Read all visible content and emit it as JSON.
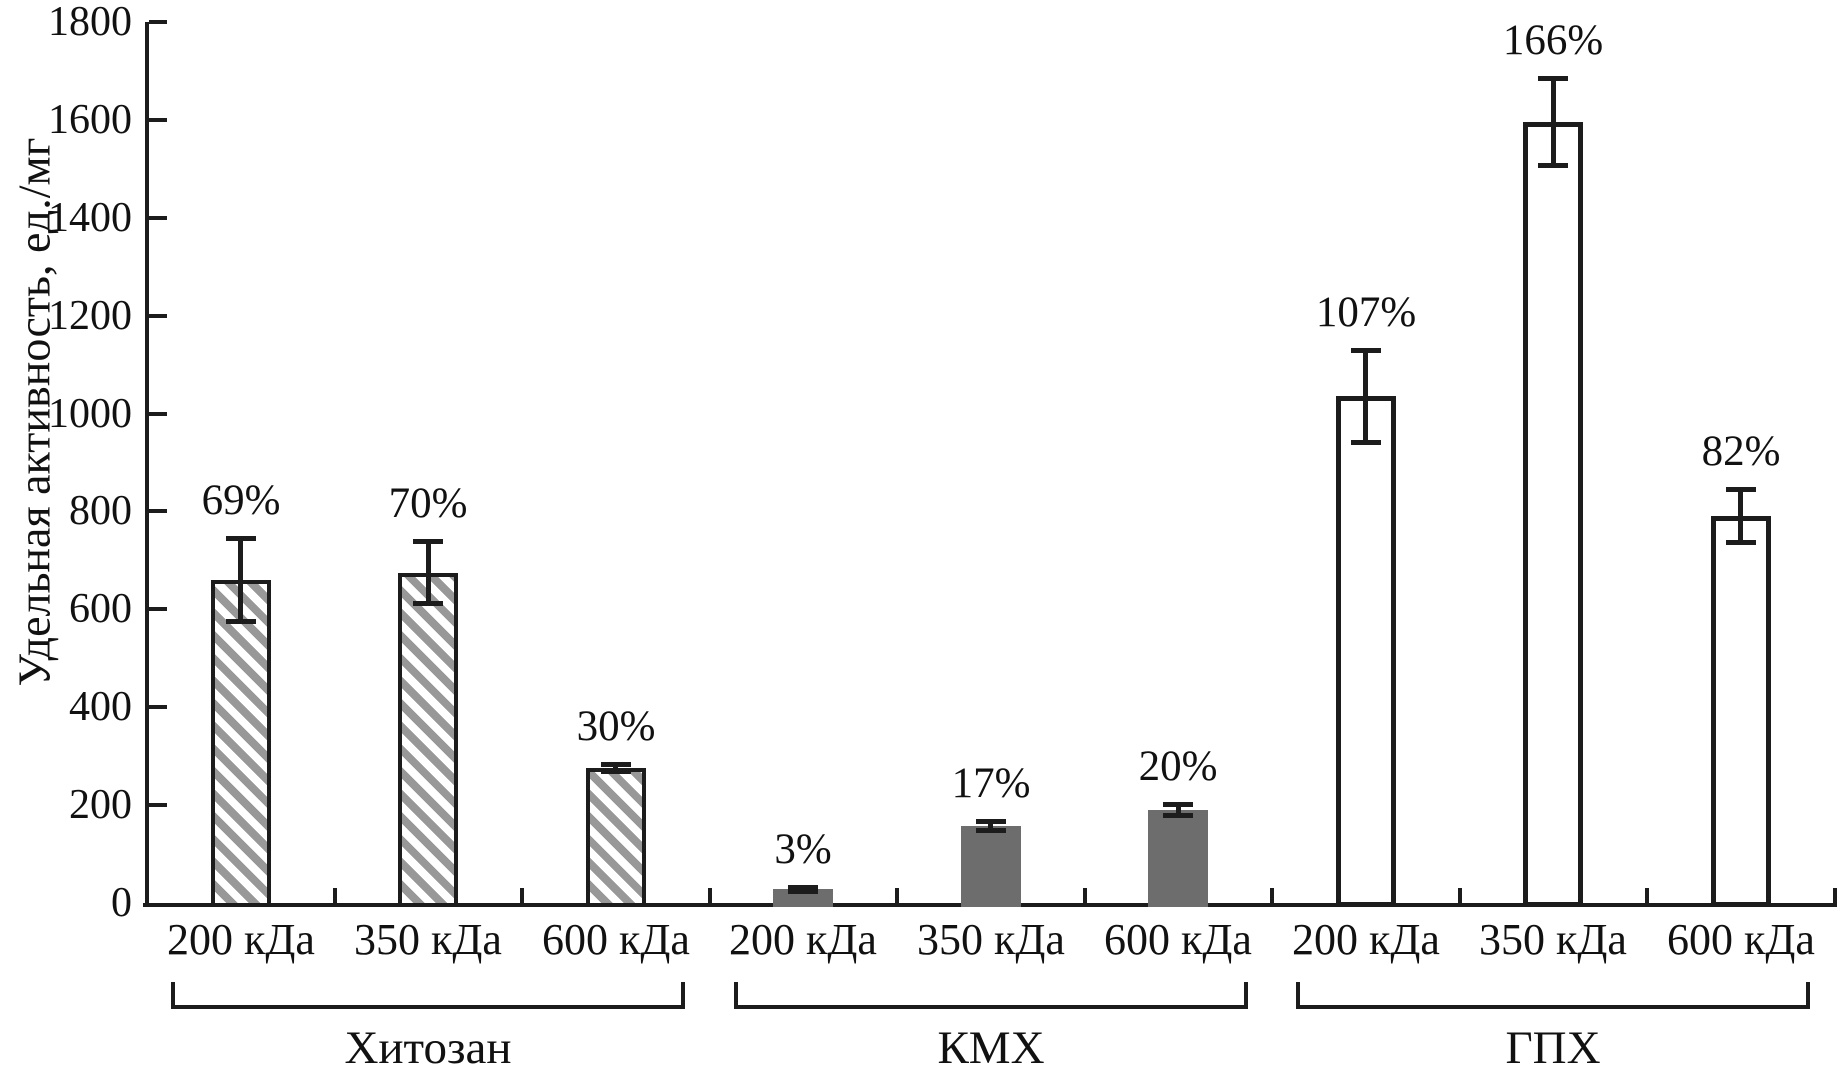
{
  "chart_data": {
    "type": "bar",
    "title": "",
    "ylabel": "Удельная активность, ед./мг",
    "xlabel": "",
    "ylim": [
      0,
      1800
    ],
    "ytick_step": 200,
    "grid": false,
    "legend": false,
    "error_bars": true,
    "categories": [
      "200 кДа",
      "350 кДа",
      "600 кДа"
    ],
    "groups": [
      {
        "name": "Хитозан",
        "bar_style": "hatched",
        "bars": [
          {
            "category": "200 кДа",
            "value": 660,
            "error": 85,
            "label": "69%"
          },
          {
            "category": "350 кДа",
            "value": 675,
            "error": 65,
            "label": "70%"
          },
          {
            "category": "600 кДа",
            "value": 275,
            "error": 8,
            "label": "30%"
          }
        ]
      },
      {
        "name": "КМХ",
        "bar_style": "solid",
        "bars": [
          {
            "category": "200 кДа",
            "value": 28,
            "error": 5,
            "label": "3%"
          },
          {
            "category": "350 кДа",
            "value": 158,
            "error": 10,
            "label": "17%"
          },
          {
            "category": "600 кДа",
            "value": 190,
            "error": 12,
            "label": "20%"
          }
        ]
      },
      {
        "name": "ГПХ",
        "bar_style": "outline",
        "bars": [
          {
            "category": "200 кДа",
            "value": 1035,
            "error": 95,
            "label": "107%"
          },
          {
            "category": "350 кДа",
            "value": 1595,
            "error": 90,
            "label": "166%"
          },
          {
            "category": "600 кДа",
            "value": 790,
            "error": 55,
            "label": "82%"
          }
        ]
      }
    ],
    "colors": {
      "stroke": "#1c1c1c",
      "solid_bar": "#6d6d6d",
      "hatch_stripe": "#989898",
      "background": "#ffffff"
    }
  }
}
